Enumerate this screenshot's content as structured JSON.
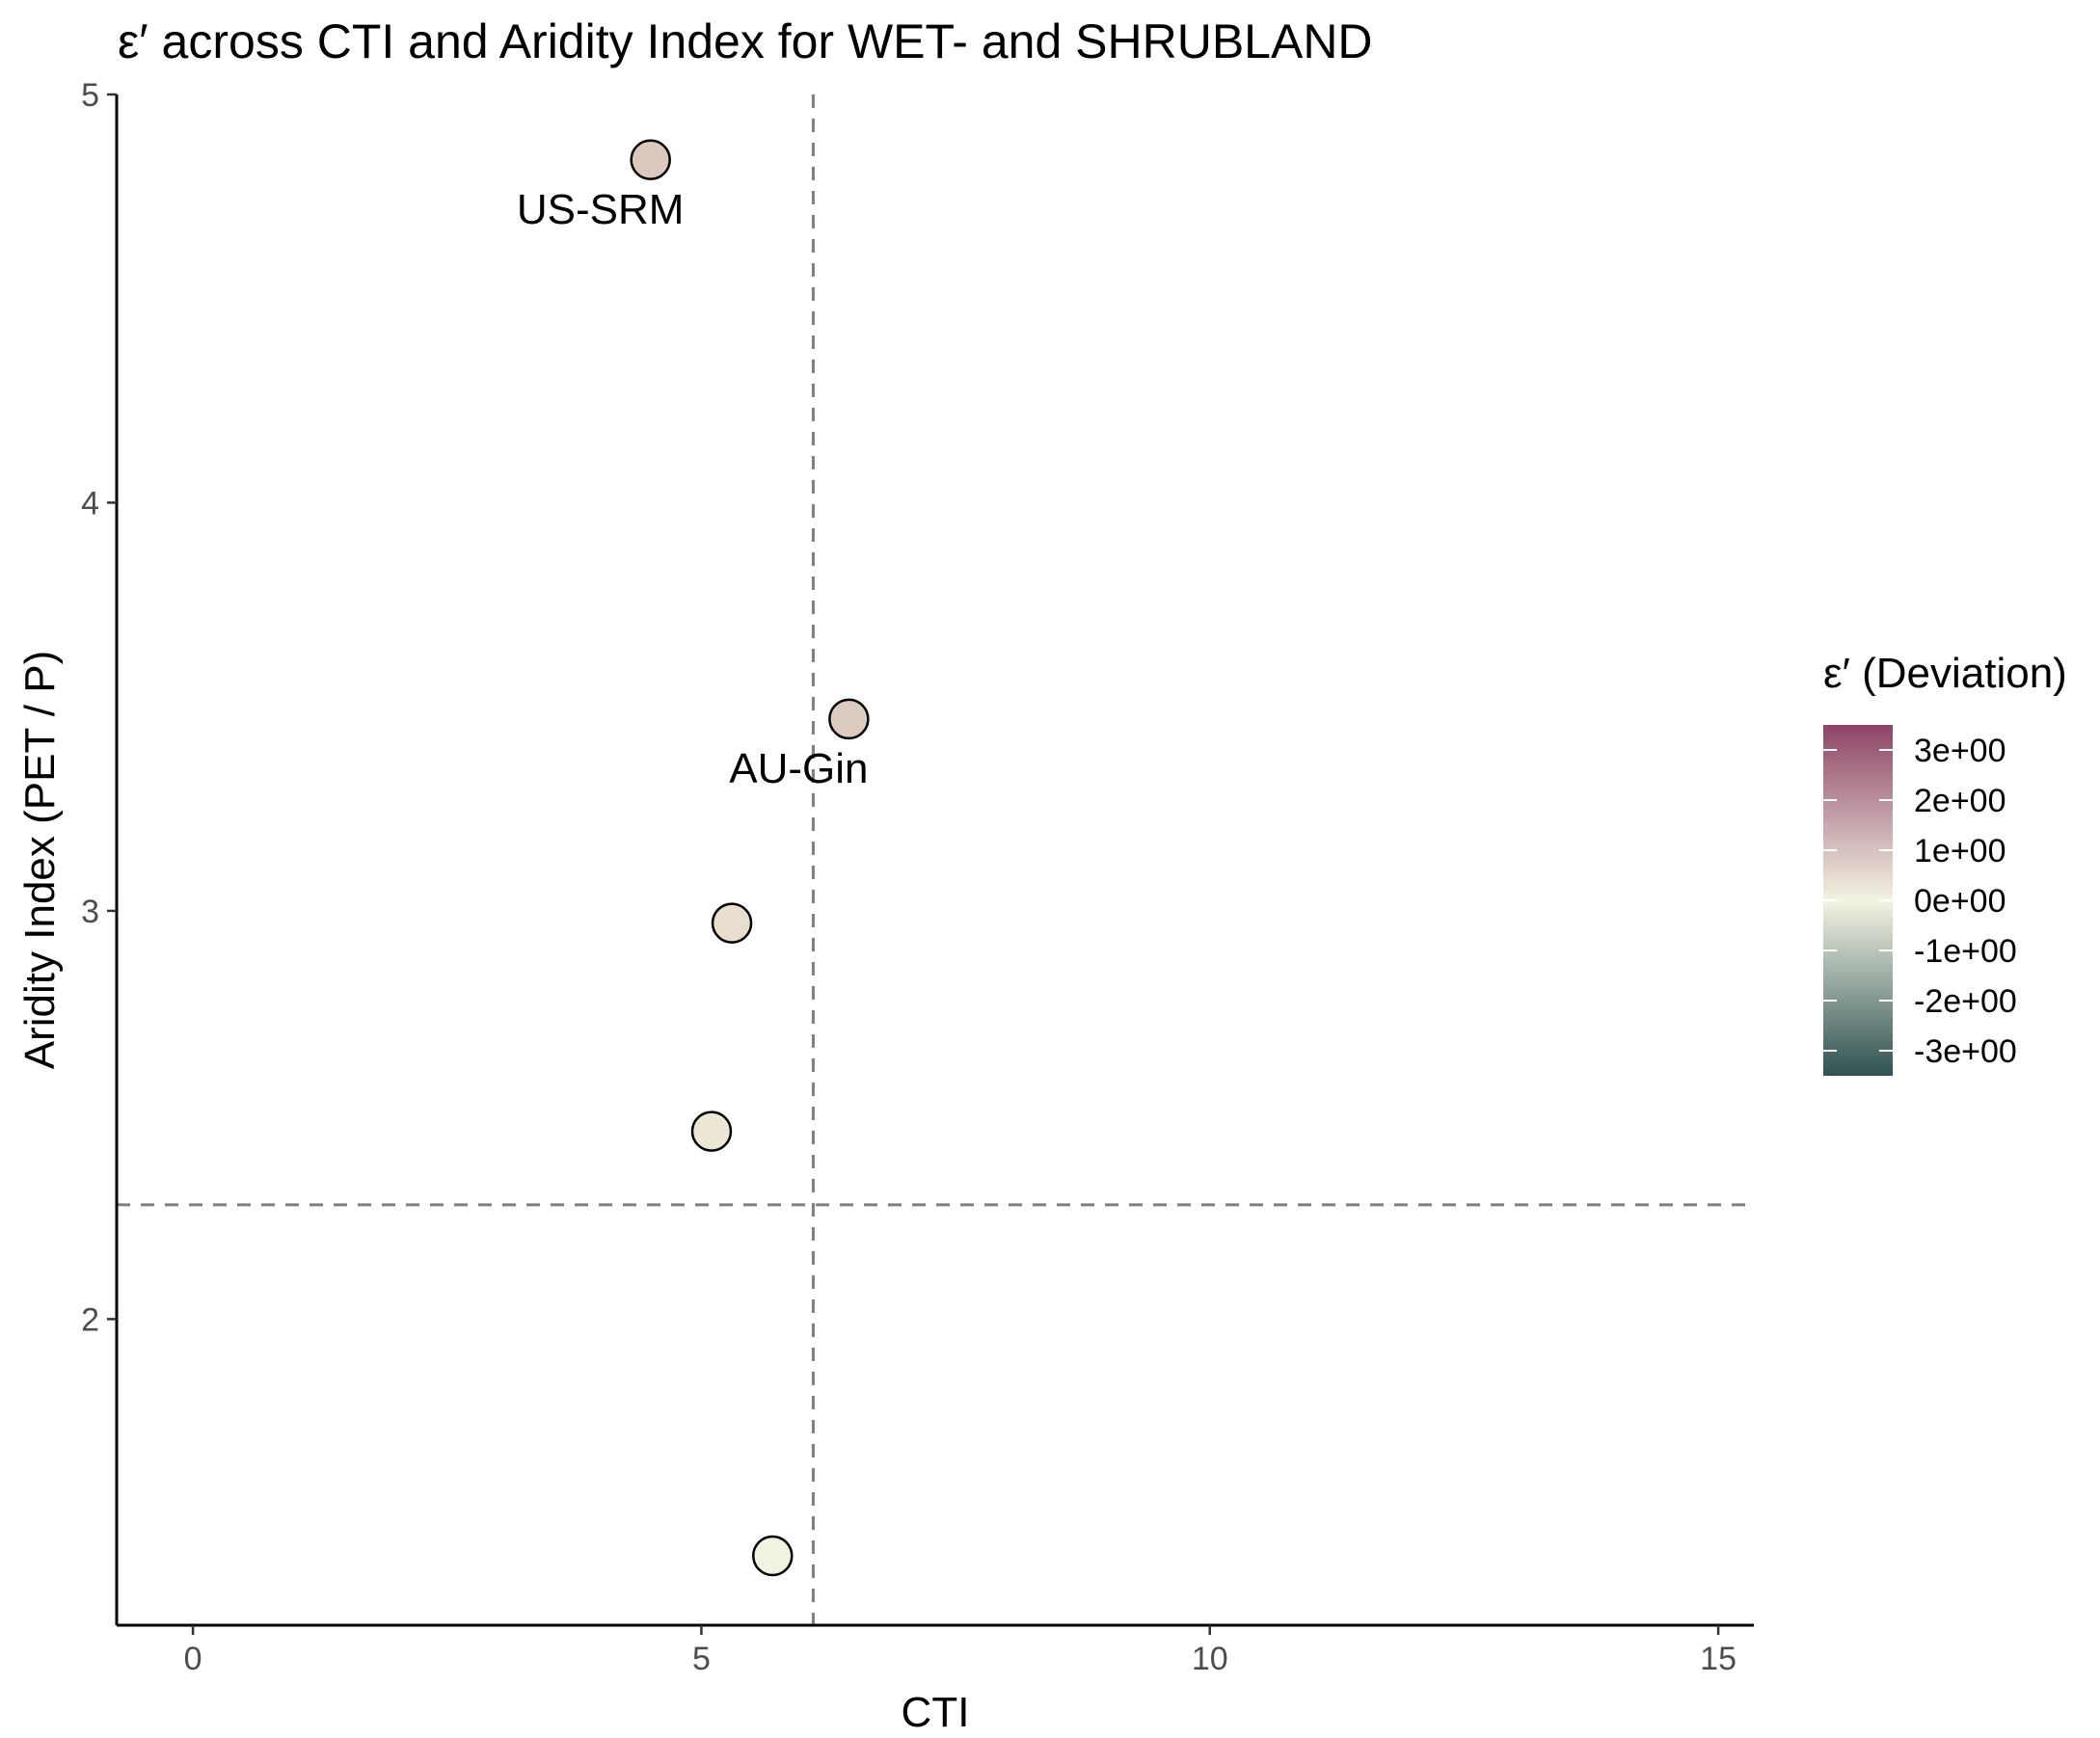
{
  "chart_data": {
    "type": "scatter",
    "title": "ε′ across CTI and Aridity Index for WET- and SHRUBLAND",
    "xlabel": "CTI",
    "ylabel": "Aridity Index (PET / P)",
    "xlim": [
      -0.75,
      15.35
    ],
    "ylim": [
      1.25,
      5.0
    ],
    "xticks": [
      0,
      5,
      10,
      15
    ],
    "xtick_labels": [
      "0",
      "5",
      "10",
      "15"
    ],
    "yticks": [
      2,
      3,
      4,
      5
    ],
    "ytick_labels": [
      "2",
      "3",
      "4",
      "5"
    ],
    "reference_lines": {
      "x": 6.1,
      "y": 2.28,
      "style": "dashed",
      "color": "#7f7f7f"
    },
    "points": [
      {
        "x": 4.5,
        "y": 4.84,
        "value": 0.8,
        "label": "US-SRM",
        "fill": "#dcc8bd"
      },
      {
        "x": 6.45,
        "y": 3.47,
        "value": 0.75,
        "label": "AU-Gin",
        "fill": "#dccbc0"
      },
      {
        "x": 5.3,
        "y": 2.97,
        "value": 0.45,
        "label": "",
        "fill": "#e8dece"
      },
      {
        "x": 5.1,
        "y": 2.46,
        "value": 0.3,
        "label": "",
        "fill": "#ece6d5"
      },
      {
        "x": 5.7,
        "y": 1.42,
        "value": 0.0,
        "label": "",
        "fill": "#f2f2e0"
      }
    ],
    "legend": {
      "title": "ε′ (Deviation)",
      "position": "right",
      "range": [
        -3.5,
        3.5
      ],
      "ticks": [
        3,
        2,
        1,
        0,
        -1,
        -2,
        -3
      ],
      "tick_labels": [
        "3e+00",
        "2e+00",
        "1e+00",
        "0e+00",
        "-1e+00",
        "-2e+00",
        "-3e+00"
      ],
      "colors": {
        "high": "#8e4466",
        "mid": "#f3f3e3",
        "low": "#2f5252"
      }
    },
    "grid": false
  }
}
